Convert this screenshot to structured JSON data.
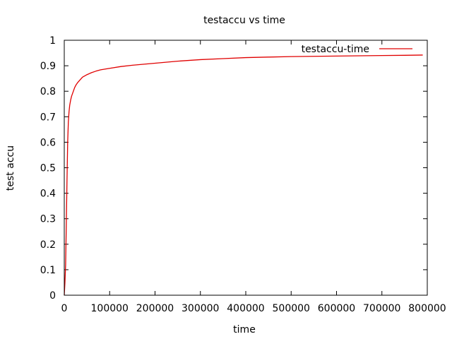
{
  "chart_data": {
    "type": "line",
    "title": "testaccu  vs time",
    "xlabel": "time",
    "ylabel": "test accu",
    "xlim": [
      0,
      800000
    ],
    "ylim": [
      0,
      1
    ],
    "x_ticks": [
      0,
      100000,
      200000,
      300000,
      400000,
      500000,
      600000,
      700000,
      800000
    ],
    "y_ticks": [
      0,
      0.1,
      0.2,
      0.3,
      0.4,
      0.5,
      0.6,
      0.7,
      0.8,
      0.9,
      1
    ],
    "grid": false,
    "legend_position": "top-right",
    "series": [
      {
        "name": "testaccu-time",
        "color": "#e00000",
        "x": [
          0,
          1500,
          3000,
          4500,
          6000,
          7500,
          9000,
          10500,
          12000,
          14000,
          16000,
          18000,
          20000,
          23000,
          26000,
          30000,
          35000,
          40000,
          50000,
          60000,
          70000,
          80000,
          100000,
          125000,
          150000,
          200000,
          250000,
          300000,
          350000,
          400000,
          450000,
          500000,
          550000,
          600000,
          650000,
          700000,
          750000,
          790000
        ],
        "y": [
          0.0,
          0.05,
          0.12,
          0.28,
          0.45,
          0.6,
          0.68,
          0.72,
          0.745,
          0.765,
          0.78,
          0.79,
          0.8,
          0.815,
          0.825,
          0.835,
          0.845,
          0.855,
          0.865,
          0.873,
          0.879,
          0.884,
          0.89,
          0.897,
          0.902,
          0.91,
          0.918,
          0.924,
          0.928,
          0.932,
          0.934,
          0.936,
          0.937,
          0.938,
          0.939,
          0.94,
          0.941,
          0.942
        ]
      }
    ]
  }
}
